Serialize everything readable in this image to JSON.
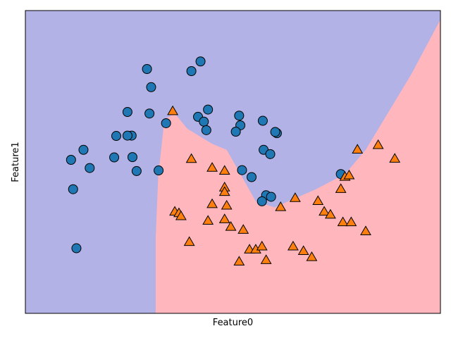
{
  "chart_data": {
    "type": "scatter",
    "xlabel": "Feature0",
    "ylabel": "Feature1",
    "xlim": [
      0,
      10
    ],
    "ylim": [
      0,
      10
    ],
    "xticks": false,
    "yticks": false,
    "colors": {
      "region_class0": "#b2b2e6",
      "region_class1": "#ffb6bc",
      "class0_marker": "#1f77b4",
      "class1_marker": "#ff7f0e"
    },
    "decision_boundary": [
      [
        3.14,
        0.0
      ],
      [
        3.14,
        2.5
      ],
      [
        3.2,
        4.5
      ],
      [
        3.35,
        6.4
      ],
      [
        3.6,
        6.6
      ],
      [
        3.9,
        6.1
      ],
      [
        4.5,
        5.6
      ],
      [
        4.85,
        5.4
      ],
      [
        5.1,
        4.8
      ],
      [
        5.55,
        3.7
      ],
      [
        6.0,
        3.5
      ],
      [
        7.0,
        4.1
      ],
      [
        7.7,
        4.6
      ],
      [
        8.2,
        5.4
      ],
      [
        9.3,
        7.9
      ],
      [
        10.0,
        9.7
      ]
    ],
    "series": [
      {
        "marker": "circle",
        "points": [
          [
            2.93,
            8.07
          ],
          [
            4.0,
            8.0
          ],
          [
            4.22,
            8.32
          ],
          [
            3.03,
            7.47
          ],
          [
            4.4,
            6.73
          ],
          [
            2.46,
            6.65
          ],
          [
            2.99,
            6.6
          ],
          [
            3.39,
            6.28
          ],
          [
            5.15,
            6.53
          ],
          [
            4.16,
            6.49
          ],
          [
            4.3,
            6.33
          ],
          [
            5.18,
            6.21
          ],
          [
            4.36,
            6.05
          ],
          [
            5.07,
            6.0
          ],
          [
            5.72,
            6.36
          ],
          [
            6.06,
            5.95
          ],
          [
            6.02,
            5.99
          ],
          [
            2.19,
            5.86
          ],
          [
            2.56,
            5.87
          ],
          [
            2.46,
            5.87
          ],
          [
            1.4,
            5.4
          ],
          [
            5.74,
            5.4
          ],
          [
            5.9,
            5.26
          ],
          [
            1.1,
            5.07
          ],
          [
            2.14,
            5.15
          ],
          [
            2.58,
            5.16
          ],
          [
            1.55,
            4.8
          ],
          [
            2.68,
            4.7
          ],
          [
            3.21,
            4.72
          ],
          [
            5.22,
            4.73
          ],
          [
            5.45,
            4.5
          ],
          [
            7.6,
            4.6
          ],
          [
            1.15,
            4.1
          ],
          [
            5.8,
            3.9
          ],
          [
            5.92,
            3.85
          ],
          [
            5.7,
            3.7
          ],
          [
            1.23,
            2.15
          ]
        ]
      },
      {
        "marker": "triangle",
        "points": [
          [
            3.55,
            6.67
          ],
          [
            4.0,
            5.09
          ],
          [
            4.5,
            4.8
          ],
          [
            4.8,
            4.7
          ],
          [
            4.8,
            4.15
          ],
          [
            4.8,
            4.0
          ],
          [
            4.5,
            3.6
          ],
          [
            4.85,
            3.55
          ],
          [
            3.6,
            3.35
          ],
          [
            3.7,
            3.3
          ],
          [
            3.75,
            3.2
          ],
          [
            4.4,
            3.05
          ],
          [
            4.8,
            3.1
          ],
          [
            4.95,
            2.85
          ],
          [
            5.25,
            2.75
          ],
          [
            3.95,
            2.35
          ],
          [
            5.4,
            2.1
          ],
          [
            5.55,
            2.1
          ],
          [
            5.7,
            2.2
          ],
          [
            5.15,
            1.7
          ],
          [
            5.8,
            1.75
          ],
          [
            6.15,
            3.5
          ],
          [
            6.5,
            3.8
          ],
          [
            7.05,
            3.7
          ],
          [
            7.2,
            3.35
          ],
          [
            7.35,
            3.25
          ],
          [
            7.6,
            4.1
          ],
          [
            7.7,
            4.5
          ],
          [
            7.8,
            4.55
          ],
          [
            7.65,
            3.0
          ],
          [
            7.85,
            3.0
          ],
          [
            8.2,
            2.7
          ],
          [
            6.45,
            2.2
          ],
          [
            6.7,
            2.05
          ],
          [
            6.9,
            1.85
          ],
          [
            8.0,
            5.4
          ],
          [
            8.5,
            5.55
          ],
          [
            8.9,
            5.1
          ]
        ]
      }
    ]
  }
}
